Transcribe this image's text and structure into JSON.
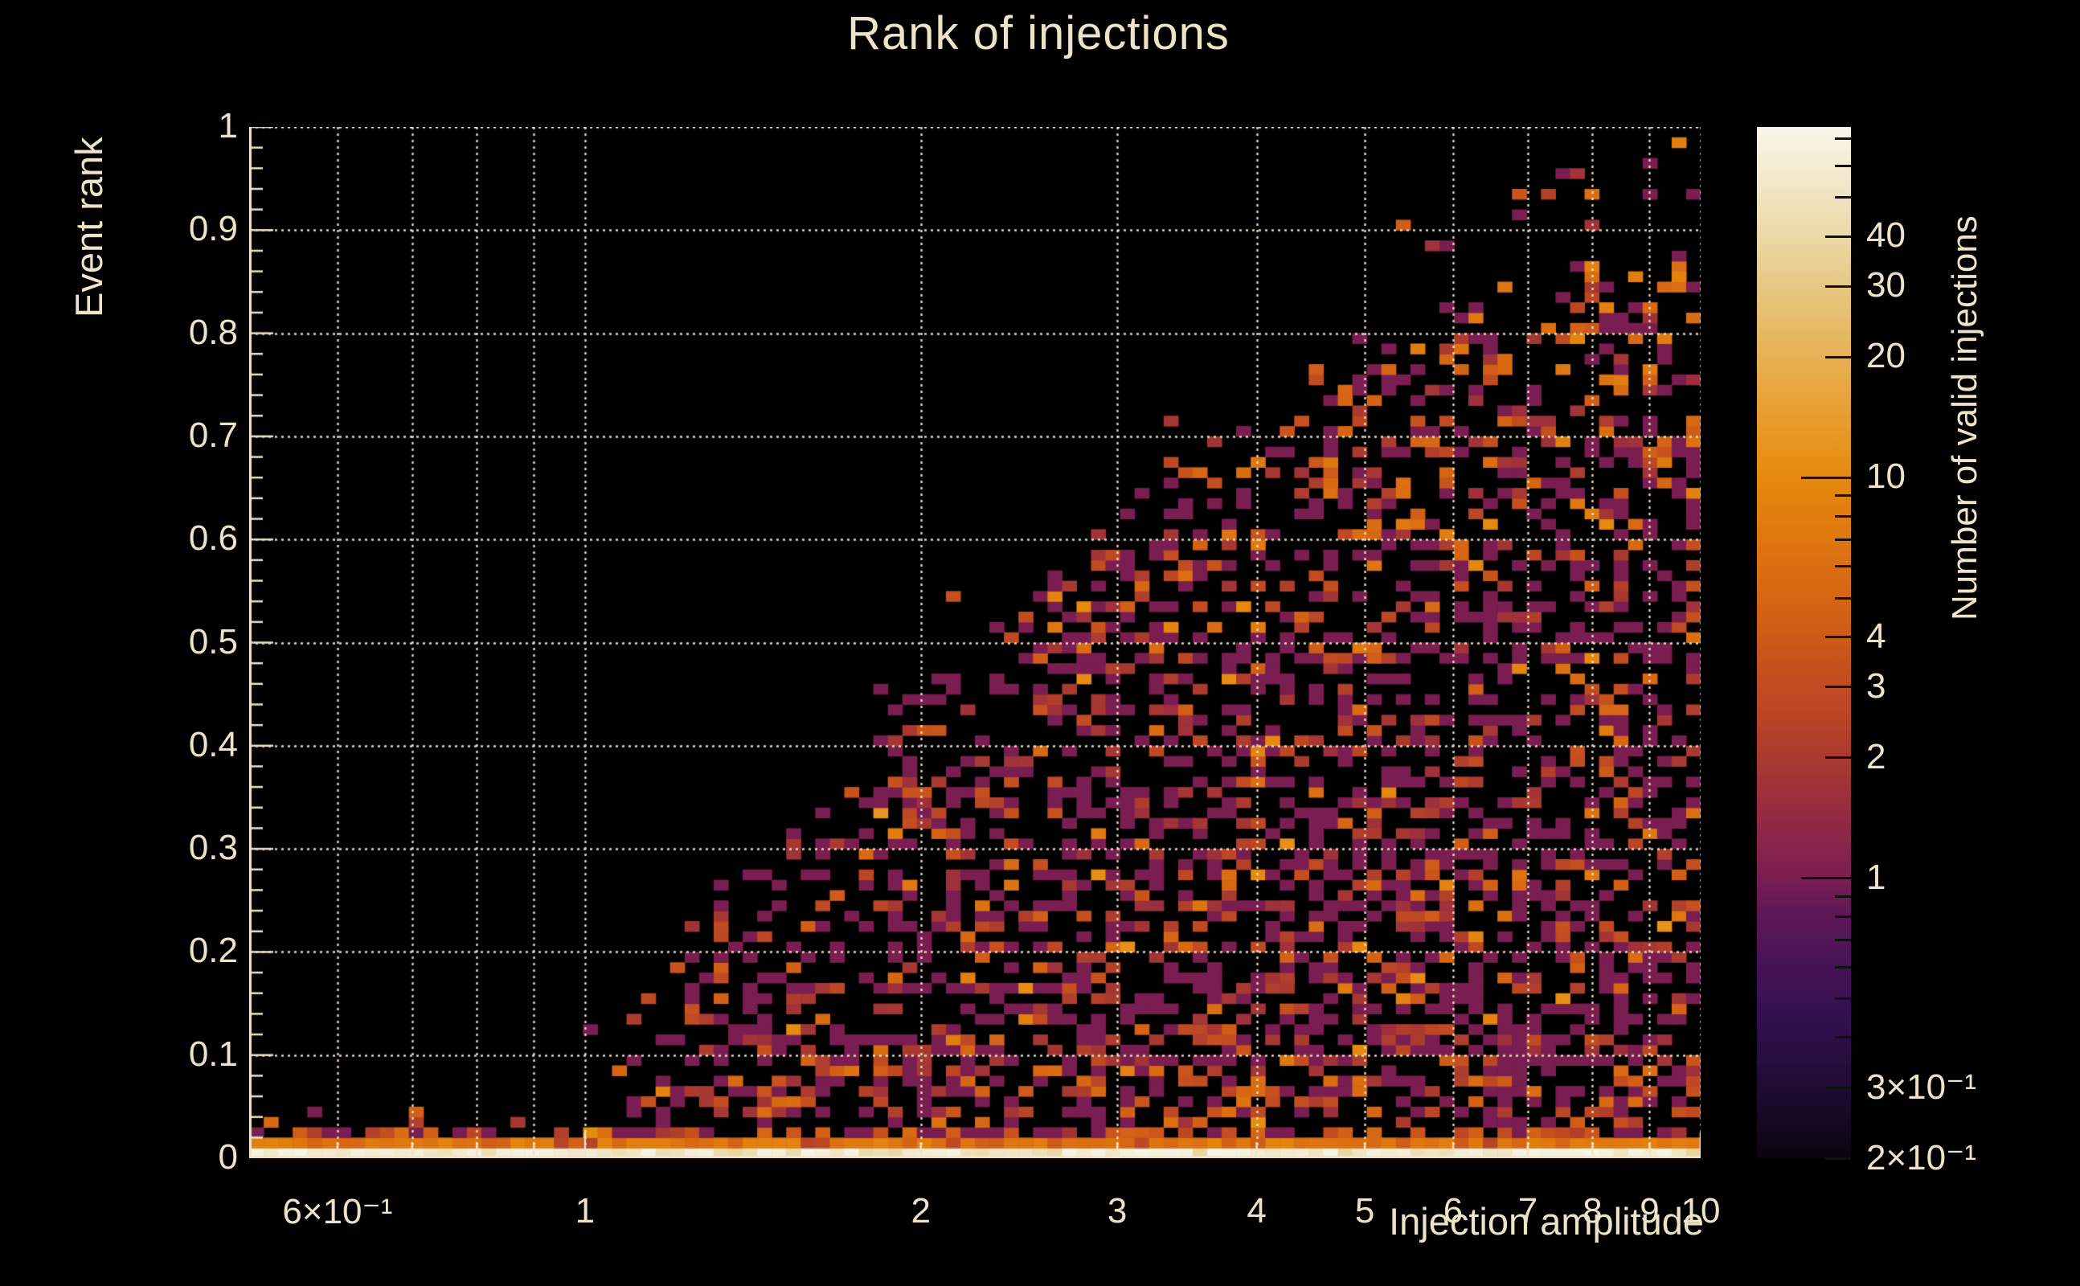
{
  "title": "Rank of injections",
  "colors": {
    "background": "#000000",
    "text": "#EDE4C8",
    "axis": "#EDE4C8",
    "grid": "#F2E9CE",
    "colorbar_tick": "#101010"
  },
  "chart_data": {
    "type": "heatmap",
    "title": "Rank of injections",
    "xlabel": "Injection amplitude",
    "ylabel": "Event rank",
    "zlabel": "Number of valid injections",
    "x_scale": "log",
    "x_range": [
      0.5,
      10
    ],
    "y_scale": "linear",
    "y_range": [
      0,
      1
    ],
    "z_scale": "log",
    "z_range": [
      0.2,
      75
    ],
    "x_bins": 100,
    "y_bins": 100,
    "grid": "dotted",
    "legend_position": "right-colorbar",
    "x_ticks": [
      {
        "value": 0.6,
        "label": "6×10⁻¹"
      },
      {
        "value": 1,
        "label": "1"
      },
      {
        "value": 2,
        "label": "2"
      },
      {
        "value": 3,
        "label": "3"
      },
      {
        "value": 4,
        "label": "4"
      },
      {
        "value": 5,
        "label": "5"
      },
      {
        "value": 6,
        "label": "6"
      },
      {
        "value": 7,
        "label": "7"
      },
      {
        "value": 8,
        "label": "8"
      },
      {
        "value": 9,
        "label": "9"
      },
      {
        "value": 10,
        "label": "10"
      }
    ],
    "x_gridline_values": [
      0.6,
      0.7,
      0.8,
      0.9,
      1,
      2,
      3,
      4,
      5,
      6,
      7,
      8,
      9,
      10
    ],
    "y_ticks": [
      {
        "value": 0,
        "label": "0"
      },
      {
        "value": 0.1,
        "label": "0.1"
      },
      {
        "value": 0.2,
        "label": "0.2"
      },
      {
        "value": 0.3,
        "label": "0.3"
      },
      {
        "value": 0.4,
        "label": "0.4"
      },
      {
        "value": 0.5,
        "label": "0.5"
      },
      {
        "value": 0.6,
        "label": "0.6"
      },
      {
        "value": 0.7,
        "label": "0.7"
      },
      {
        "value": 0.8,
        "label": "0.8"
      },
      {
        "value": 0.9,
        "label": "0.9"
      },
      {
        "value": 1,
        "label": "1"
      }
    ],
    "y_minor_tick_step": 0.02,
    "colorbar_ticks": [
      {
        "value": 40,
        "label": "40",
        "long": false
      },
      {
        "value": 30,
        "label": "30",
        "long": false
      },
      {
        "value": 20,
        "label": "20",
        "long": false
      },
      {
        "value": 10,
        "label": "10",
        "long": true
      },
      {
        "value": 4,
        "label": "4",
        "long": false
      },
      {
        "value": 3,
        "label": "3",
        "long": false
      },
      {
        "value": 2,
        "label": "2",
        "long": false
      },
      {
        "value": 1,
        "label": "1",
        "long": true
      },
      {
        "value": 0.3,
        "label": "3×10⁻¹",
        "long": false
      },
      {
        "value": 0.2,
        "label": "2×10⁻¹",
        "long": false
      }
    ],
    "colorbar_minor_ticks": [
      70,
      60,
      50,
      9,
      8,
      7,
      6,
      5,
      0.9,
      0.8,
      0.7,
      0.6,
      0.5,
      0.4
    ],
    "palette_stops": [
      {
        "z": 0.2,
        "color": "#0C040F"
      },
      {
        "z": 0.3,
        "color": "#1E0C33"
      },
      {
        "z": 0.45,
        "color": "#33104F"
      },
      {
        "z": 0.6,
        "color": "#451356"
      },
      {
        "z": 0.8,
        "color": "#5C1757"
      },
      {
        "z": 1.0,
        "color": "#7A1E52"
      },
      {
        "z": 1.3,
        "color": "#8E2649"
      },
      {
        "z": 1.6,
        "color": "#9C2F3D"
      },
      {
        "z": 2.0,
        "color": "#A93A30"
      },
      {
        "z": 2.5,
        "color": "#B94427"
      },
      {
        "z": 3.0,
        "color": "#C14B21"
      },
      {
        "z": 4.0,
        "color": "#CE5A19"
      },
      {
        "z": 5.0,
        "color": "#D66514"
      },
      {
        "z": 7.0,
        "color": "#DF7610"
      },
      {
        "z": 10,
        "color": "#E68A0E"
      },
      {
        "z": 14,
        "color": "#E89C2E"
      },
      {
        "z": 20,
        "color": "#E7B055"
      },
      {
        "z": 28,
        "color": "#E6C47A"
      },
      {
        "z": 40,
        "color": "#EBD8A6"
      },
      {
        "z": 55,
        "color": "#F2E8CA"
      },
      {
        "z": 75,
        "color": "#F9F5EA"
      }
    ],
    "envelope_max_rank_vs_amplitude": [
      [
        0.5,
        0.035
      ],
      [
        0.85,
        0.035
      ],
      [
        0.95,
        0.07
      ],
      [
        1.0,
        0.12
      ],
      [
        1.2,
        0.22
      ],
      [
        1.4,
        0.3
      ],
      [
        1.6,
        0.34
      ],
      [
        1.8,
        0.4
      ],
      [
        2.0,
        0.46
      ],
      [
        2.5,
        0.55
      ],
      [
        3.0,
        0.62
      ],
      [
        3.5,
        0.66
      ],
      [
        4.0,
        0.71
      ],
      [
        4.5,
        0.75
      ],
      [
        5.0,
        0.8
      ],
      [
        6.0,
        0.84
      ],
      [
        7.0,
        0.86
      ],
      [
        8.0,
        0.88
      ],
      [
        9.0,
        0.9
      ],
      [
        10.0,
        0.92
      ]
    ],
    "bottom_band": {
      "row0_counts": [
        36,
        74
      ],
      "row1_counts": [
        4,
        9
      ],
      "row2_fill_probability": 0.6,
      "description": "lowest rank bin filled across all amplitudes with very high counts (cream/white), second bin filled with counts ~4-9 (orange), third bin partially filled"
    },
    "interior_fill_density": 0.4,
    "seed": 20240717
  }
}
